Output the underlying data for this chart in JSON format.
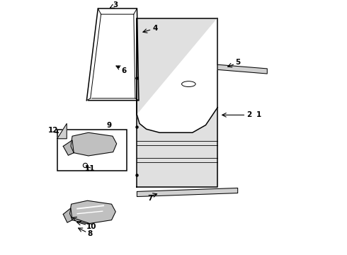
{
  "background_color": "#ffffff",
  "line_color": "#000000",
  "figsize": [
    4.9,
    3.6
  ],
  "dpi": 100,
  "xlim": [
    0,
    10
  ],
  "ylim": [
    0,
    10
  ]
}
